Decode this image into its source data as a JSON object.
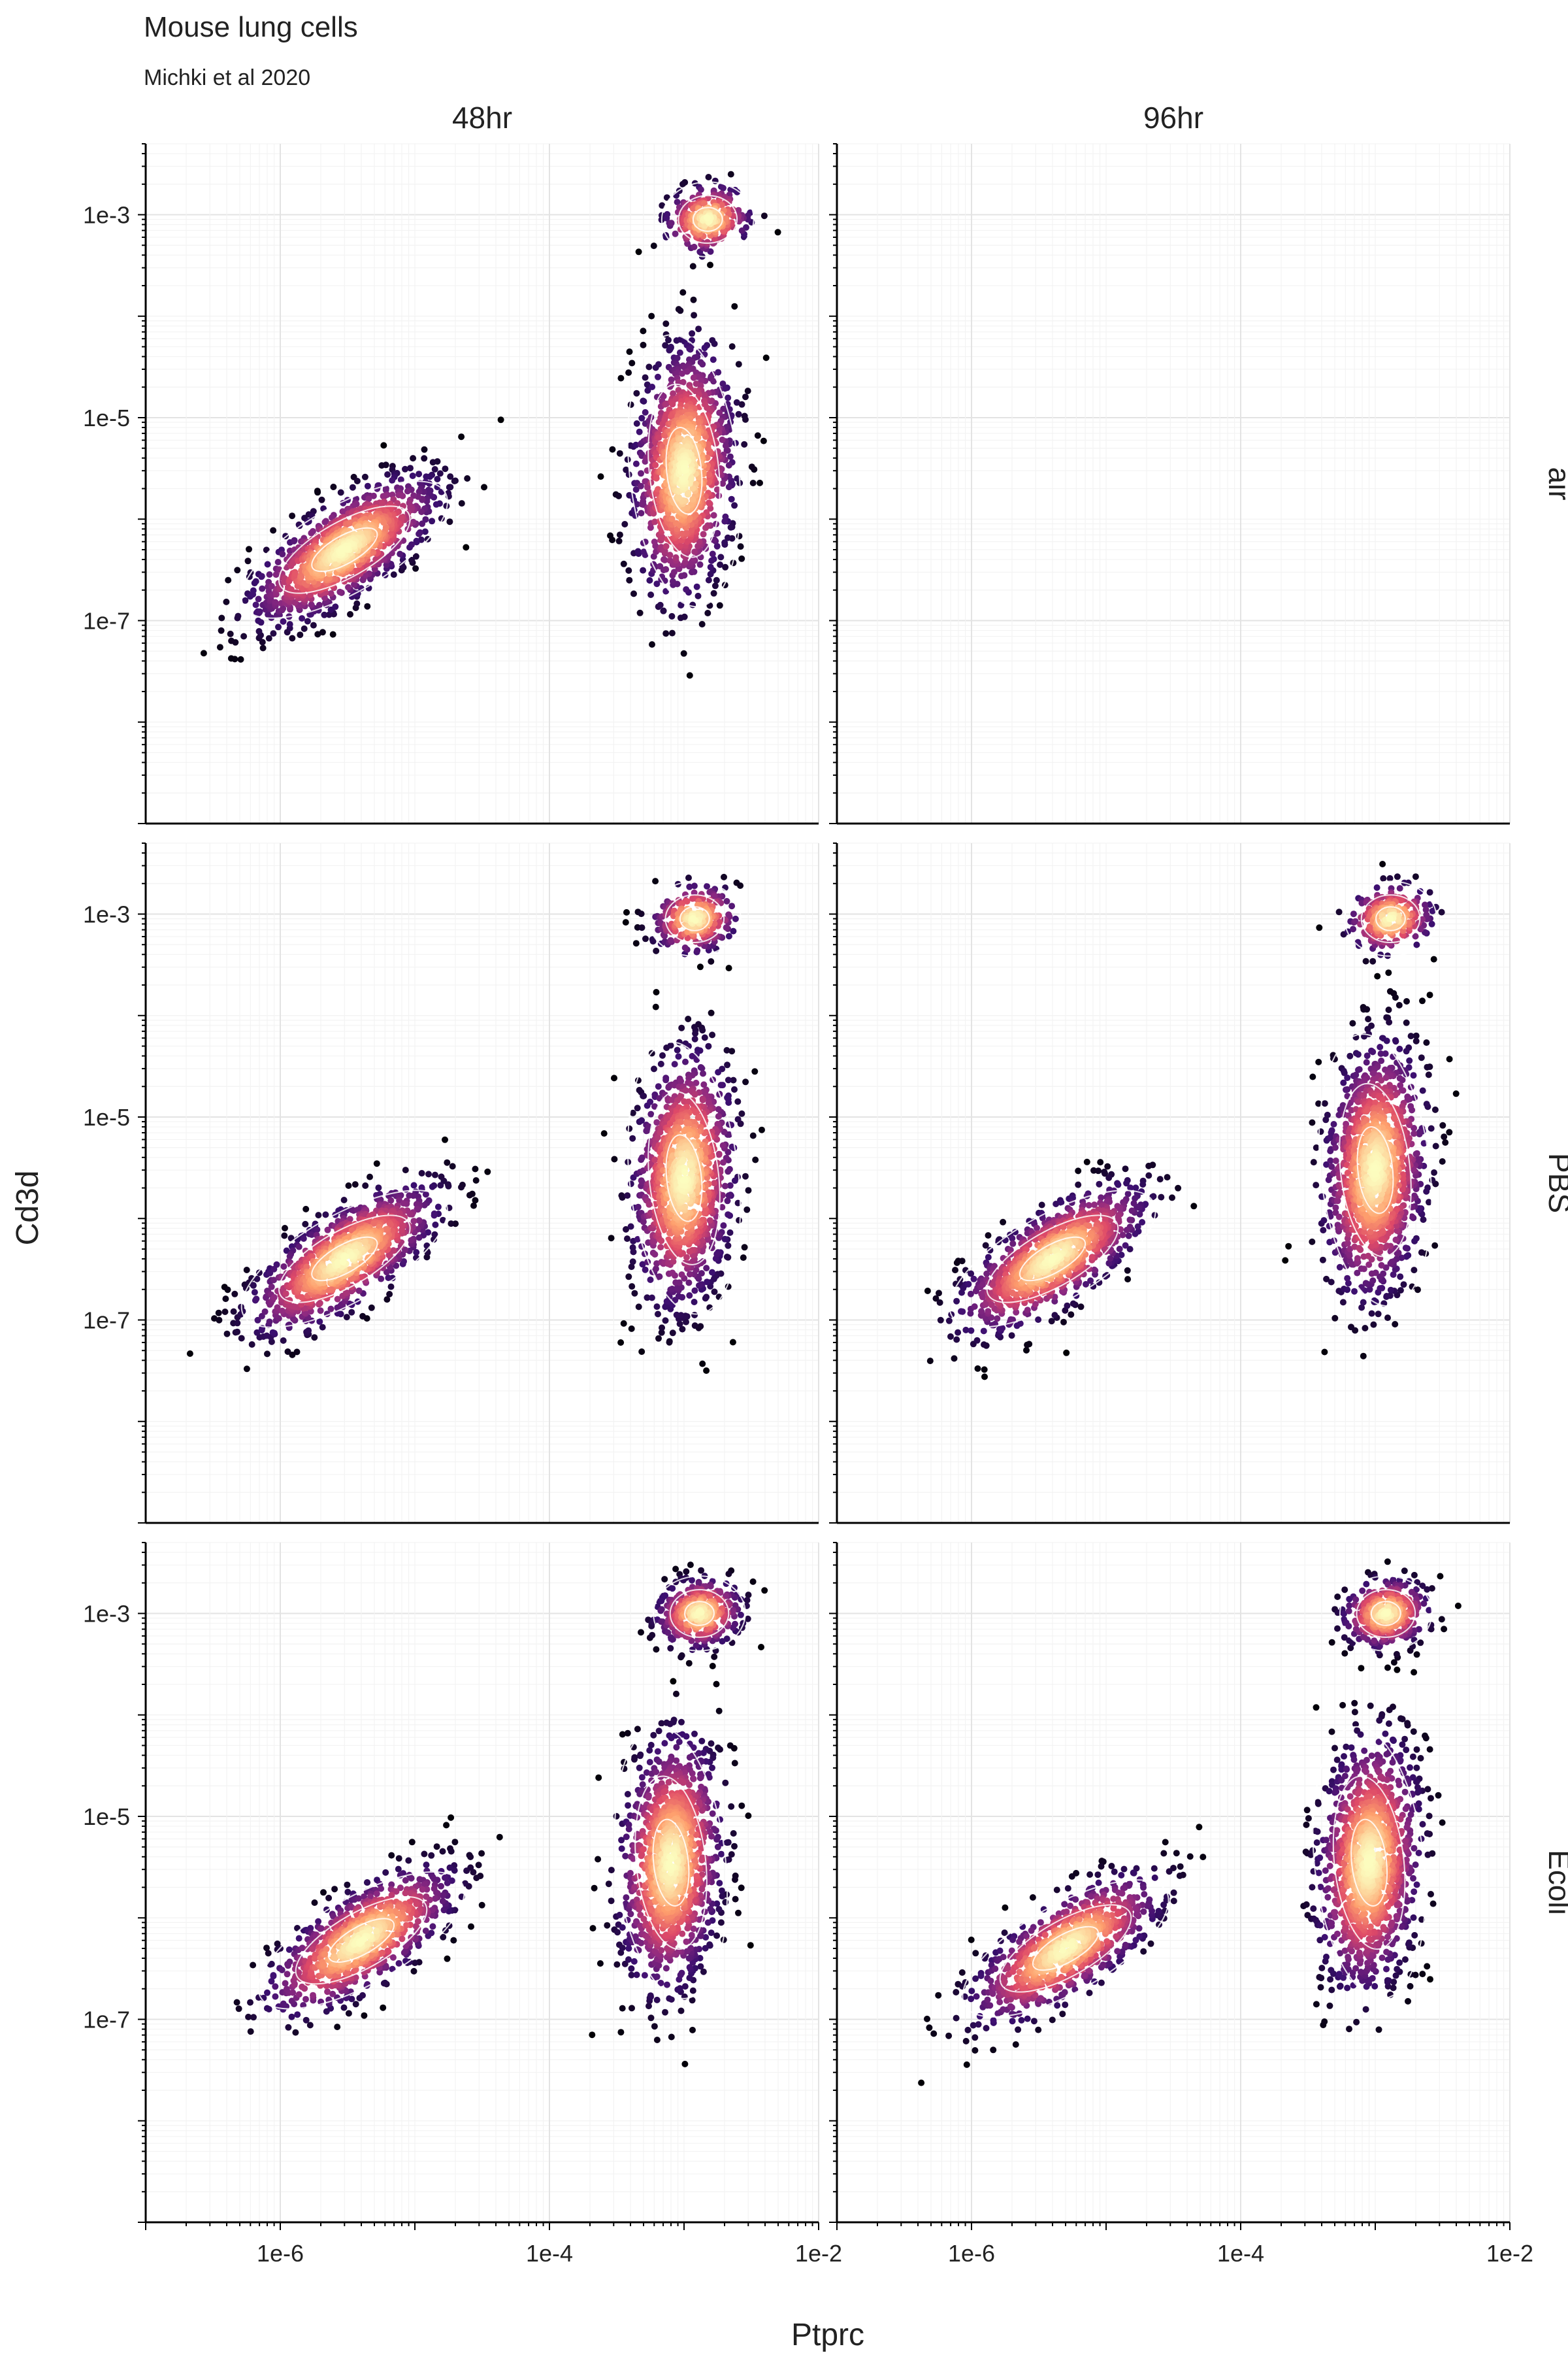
{
  "chart_data": {
    "type": "scatter",
    "title": "Mouse lung cells",
    "subtitle": "Michki et al 2020",
    "xlabel": "Ptprc",
    "ylabel": "Cd3d",
    "x_scale": "log10",
    "y_scale": "log10",
    "xlim": [
      1e-07,
      0.01
    ],
    "ylim": [
      1e-09,
      0.005
    ],
    "x_ticks": [
      "1e-6",
      "1e-4",
      "1e-2"
    ],
    "y_ticks": [
      "1e-3",
      "1e-5",
      "1e-7"
    ],
    "facet_columns": [
      "48hr",
      "96hr"
    ],
    "facet_rows": [
      "air",
      "PBS",
      "Ecoli"
    ],
    "grid": true,
    "colormap": [
      "#000004",
      "#3b0f70",
      "#8c2981",
      "#de4968",
      "#fe9f6d",
      "#fcfdbf"
    ],
    "contour_color": "#ffffff",
    "panels": [
      {
        "column": "48hr",
        "row": "air",
        "clusters": [
          {
            "x_center": 3e-06,
            "y_center": 5e-07,
            "weight": 0.45
          },
          {
            "x_center": 0.001,
            "y_center": 3e-06,
            "weight": 0.45
          },
          {
            "x_center": 0.0015,
            "y_center": 0.0009,
            "weight": 0.1
          }
        ]
      },
      {
        "column": "96hr",
        "row": "air",
        "clusters": []
      },
      {
        "column": "48hr",
        "row": "PBS",
        "clusters": [
          {
            "x_center": 3e-06,
            "y_center": 4e-07,
            "weight": 0.42
          },
          {
            "x_center": 0.001,
            "y_center": 2.5e-06,
            "weight": 0.48
          },
          {
            "x_center": 0.0012,
            "y_center": 0.0009,
            "weight": 0.1
          }
        ]
      },
      {
        "column": "96hr",
        "row": "PBS",
        "clusters": [
          {
            "x_center": 4e-06,
            "y_center": 4e-07,
            "weight": 0.4
          },
          {
            "x_center": 0.001,
            "y_center": 3e-06,
            "weight": 0.5
          },
          {
            "x_center": 0.0013,
            "y_center": 0.0009,
            "weight": 0.1
          }
        ]
      },
      {
        "column": "48hr",
        "row": "Ecoli",
        "clusters": [
          {
            "x_center": 4e-06,
            "y_center": 6e-07,
            "weight": 0.35
          },
          {
            "x_center": 0.0008,
            "y_center": 3.5e-06,
            "weight": 0.5
          },
          {
            "x_center": 0.0013,
            "y_center": 0.001,
            "weight": 0.15
          }
        ]
      },
      {
        "column": "96hr",
        "row": "Ecoli",
        "clusters": [
          {
            "x_center": 5e-06,
            "y_center": 5e-07,
            "weight": 0.35
          },
          {
            "x_center": 0.0009,
            "y_center": 3.5e-06,
            "weight": 0.5
          },
          {
            "x_center": 0.0012,
            "y_center": 0.001,
            "weight": 0.15
          }
        ]
      }
    ]
  }
}
